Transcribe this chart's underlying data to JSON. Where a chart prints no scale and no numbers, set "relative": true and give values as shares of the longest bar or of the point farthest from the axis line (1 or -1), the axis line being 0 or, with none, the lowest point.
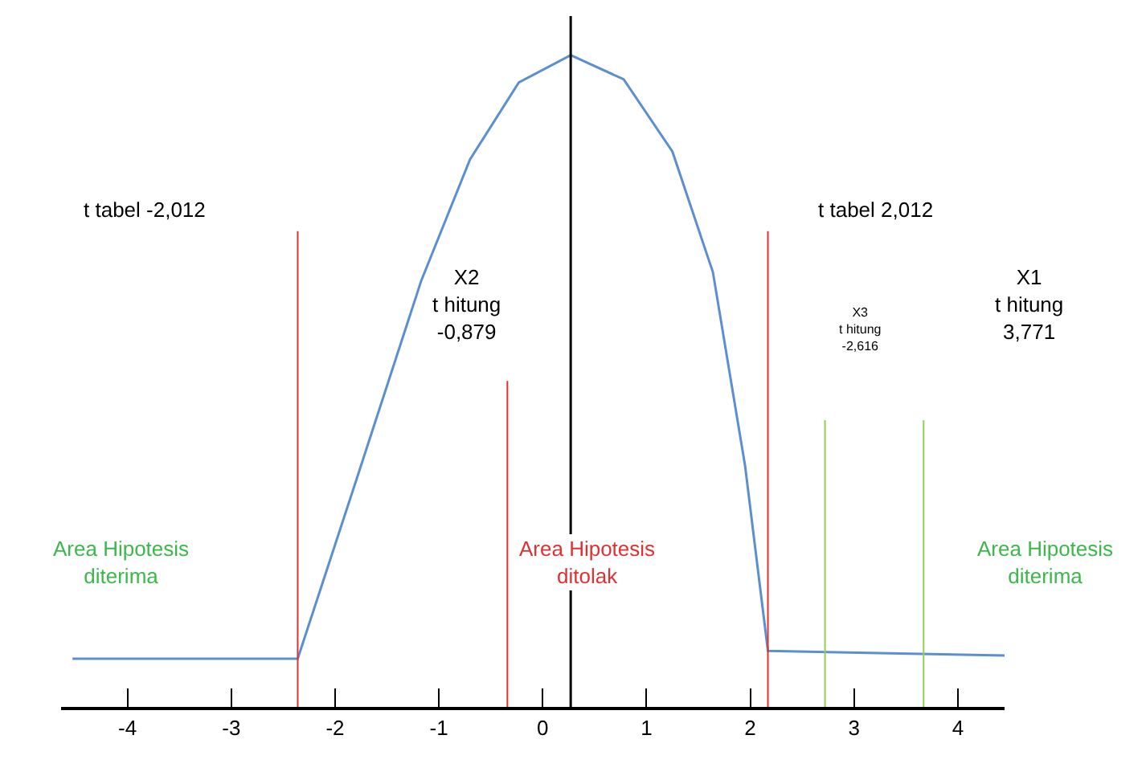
{
  "chart_data": {
    "type": "line",
    "relative": true,
    "x": [
      -4.53,
      -2.36,
      -1.8,
      -1.17,
      -0.7,
      -0.23,
      0.27,
      0.78,
      1.25,
      1.64,
      1.95,
      2.17,
      4.45
    ],
    "series": [
      {
        "color": "#5b8fd0",
        "values": [
          0.074,
          0.074,
          0.346,
          0.654,
          0.84,
          0.958,
          1,
          0.963,
          0.852,
          0.667,
          0.37,
          0.086,
          0.079
        ]
      }
    ],
    "xlim": [
      -4.64,
      4.45
    ],
    "xticks": [
      -4,
      -3,
      -2,
      -1,
      0,
      1,
      2,
      3,
      4
    ],
    "marker": "none",
    "line_style": "solid",
    "ref_lines": [
      {
        "axis": "x",
        "value": 0.27,
        "color": "#000000"
      },
      {
        "axis": "x",
        "value": -2.36,
        "color": "#e03030"
      },
      {
        "axis": "x",
        "value": -0.34,
        "color": "#e03030"
      },
      {
        "axis": "x",
        "value": 2.17,
        "color": "#e03030"
      },
      {
        "axis": "x",
        "value": 2.72,
        "color": "#92d050"
      },
      {
        "axis": "x",
        "value": 3.67,
        "color": "#92d050"
      }
    ],
    "annotations": [
      "t tabel -2,012",
      "X2\nt hitung\n-0,879",
      "t tabel 2,012",
      "X3\nt hitung\n-2,616",
      "X1\nt hitung\n3,771",
      "Area Hipotesis\nditerima",
      "Area Hipotesis\nditolak",
      "Area Hipotesis\nditerima"
    ]
  }
}
